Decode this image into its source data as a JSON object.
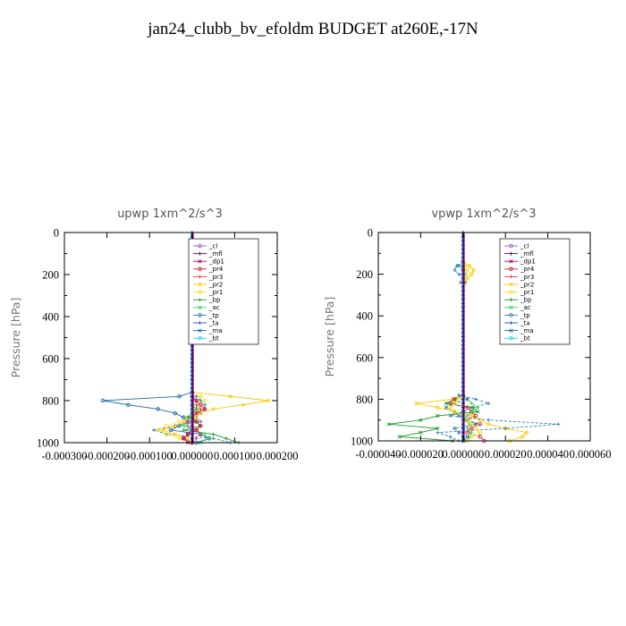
{
  "title": "jan24_clubb_bv_efoldm  BUDGET at260E,-17N",
  "legend_entries": [
    "_cl",
    "_mfl",
    "_dp1",
    "_pr4",
    "_pr3",
    "_pr2",
    "_pr1",
    "_bp",
    "_ac",
    "_tp",
    "_ta",
    "_ma",
    "_bt"
  ],
  "series_colors": {
    "_cl": "#9b59d0",
    "_mfl": "#5a0070",
    "_dp1": "#a0007a",
    "_pr4": "#d0202a",
    "_pr3": "#e03c4a",
    "_pr2": "#ffc800",
    "_pr1": "#f0e020",
    "_bp": "#1a9a2a",
    "_ac": "#40d060",
    "_tp": "#2e7fb0",
    "_ta": "#2050c0",
    "_ma": "#1a6aa8",
    "_bt": "#20d0e0"
  },
  "chart_data": [
    {
      "type": "line",
      "title": "upwp  1xm^2/s^3",
      "ylabel": "Pressure [hPa]",
      "xlabel": "",
      "xlim": [
        -0.0003,
        0.0002
      ],
      "ylim": [
        1000,
        0
      ],
      "xticks": [
        "-0.000300",
        "-0.000200",
        "-0.000100",
        "0.000000",
        "0.000100",
        "0.000200"
      ],
      "yticks": [
        "0",
        "200",
        "400",
        "600",
        "800",
        "1000"
      ],
      "legend_position": "top-right",
      "levels": [
        760,
        780,
        800,
        820,
        840,
        860,
        880,
        900,
        920,
        940,
        960,
        980,
        1000
      ],
      "series": [
        {
          "name": "_ma",
          "values": [
            0,
            -3e-05,
            -0.00021,
            -0.00015,
            -8e-05,
            -4e-05,
            -2e-05,
            -1e-05,
            -3e-05,
            -5e-05,
            2e-05,
            4e-05,
            1e-05
          ]
        },
        {
          "name": "_tp",
          "values": [
            0,
            1e-05,
            2e-05,
            3e-05,
            3e-05,
            2e-05,
            1e-05,
            2e-05,
            -4e-05,
            -9e-05,
            -6e-05,
            5e-05,
            9e-05
          ]
        },
        {
          "name": "_pr2",
          "values": [
            0,
            9e-05,
            0.00018,
            0.00012,
            5e-05,
            2e-05,
            1e-05,
            -2e-05,
            -4e-05,
            -7e-05,
            -4e-05,
            -1e-05,
            0
          ]
        },
        {
          "name": "_pr1",
          "values": [
            0,
            2e-05,
            3e-05,
            2e-05,
            1e-05,
            0,
            -1e-05,
            -3e-05,
            -6e-05,
            -8e-05,
            -6e-05,
            -3e-05,
            0
          ]
        },
        {
          "name": "_bp",
          "values": [
            0,
            0,
            1e-05,
            1e-05,
            1e-05,
            0,
            -1e-05,
            1e-05,
            2e-05,
            -2e-05,
            5e-05,
            8e-05,
            0.00011
          ]
        },
        {
          "name": "_ac",
          "values": [
            0,
            0,
            1e-05,
            0,
            1e-05,
            1e-05,
            0,
            -1e-05,
            -2e-05,
            1e-05,
            3e-05,
            4e-05,
            2e-05
          ]
        },
        {
          "name": "_pr4",
          "values": [
            0,
            0,
            1e-05,
            2e-05,
            3e-05,
            1e-05,
            0,
            1e-05,
            2e-05,
            1e-05,
            -1e-05,
            -2e-05,
            0
          ]
        },
        {
          "name": "_pr3",
          "values": [
            0,
            0,
            1e-05,
            1e-05,
            2e-05,
            1e-05,
            0,
            -1e-05,
            -1e-05,
            1e-05,
            2e-05,
            1e-05,
            0
          ]
        },
        {
          "name": "_dp1",
          "values": [
            0,
            0,
            0,
            0,
            0,
            0,
            0,
            0,
            0,
            0,
            -1e-05,
            -2e-05,
            -1e-05
          ]
        }
      ]
    },
    {
      "type": "line",
      "title": "vpwp  1xm^2/s^3",
      "ylabel": "Pressure [hPa]",
      "xlabel": "",
      "xlim": [
        -4e-05,
        6e-05
      ],
      "ylim": [
        1000,
        0
      ],
      "xticks": [
        "-0.000040",
        "-0.000020",
        "0.000000",
        "0.000020",
        "0.000040",
        "0.000060"
      ],
      "yticks": [
        "0",
        "200",
        "400",
        "600",
        "800",
        "1000"
      ],
      "legend_position": "top-right",
      "levels": [
        140,
        160,
        180,
        200,
        220,
        240,
        780,
        800,
        820,
        840,
        860,
        880,
        900,
        920,
        940,
        960,
        980,
        1000
      ],
      "series": [
        {
          "name": "_pr2",
          "values": [
            0,
            3e-06,
            5e-06,
            4e-06,
            2e-06,
            1e-06,
            0,
            -5e-06,
            -2.2e-05,
            -1.2e-05,
            -4e-06,
            4e-06,
            8e-06,
            1.2e-05,
            2e-05,
            3e-05,
            2.8e-05,
            2.2e-05
          ]
        },
        {
          "name": "_tp",
          "values": [
            0,
            -3e-06,
            -4e-06,
            -2e-06,
            0,
            1e-06,
            -2e-06,
            6e-06,
            1.2e-05,
            5e-06,
            0,
            -6e-06,
            1.2e-05,
            4.5e-05,
            2e-05,
            -1.2e-05,
            -6e-06,
            -2e-06
          ]
        },
        {
          "name": "_bp",
          "values": [
            0,
            0,
            0,
            0,
            0,
            0,
            0,
            -4e-06,
            -8e-06,
            4e-06,
            7e-06,
            -1.2e-05,
            -2e-05,
            -3.5e-05,
            -1.2e-05,
            -2e-05,
            -3e-05,
            -5e-06
          ]
        },
        {
          "name": "_pr4",
          "values": [
            0,
            0,
            0,
            0,
            0,
            0,
            0,
            -4e-06,
            -6e-06,
            2e-06,
            4e-06,
            6e-06,
            2e-06,
            8e-06,
            4e-06,
            2e-06,
            8e-06,
            1e-05
          ]
        },
        {
          "name": "_ac",
          "values": [
            0,
            0,
            0,
            0,
            0,
            0,
            0,
            2e-06,
            4e-06,
            7e-06,
            4e-06,
            2e-06,
            1e-06,
            3e-06,
            2e-06,
            4e-06,
            3e-06,
            1e-06
          ]
        },
        {
          "name": "_ma",
          "values": [
            0,
            -2e-06,
            0,
            1e-06,
            0,
            -1e-06,
            0,
            2e-06,
            -4e-06,
            -8e-06,
            -4e-06,
            -2e-06,
            2e-06,
            6e-06,
            -4e-06,
            -2e-06,
            2e-06,
            0
          ]
        },
        {
          "name": "_pr1",
          "values": [
            0,
            1e-06,
            2e-06,
            1e-06,
            0,
            0,
            0,
            -2e-06,
            -4e-06,
            -6e-06,
            -4e-06,
            0,
            2e-06,
            4e-06,
            6e-06,
            8e-06,
            4e-06,
            2e-06
          ]
        }
      ]
    }
  ]
}
